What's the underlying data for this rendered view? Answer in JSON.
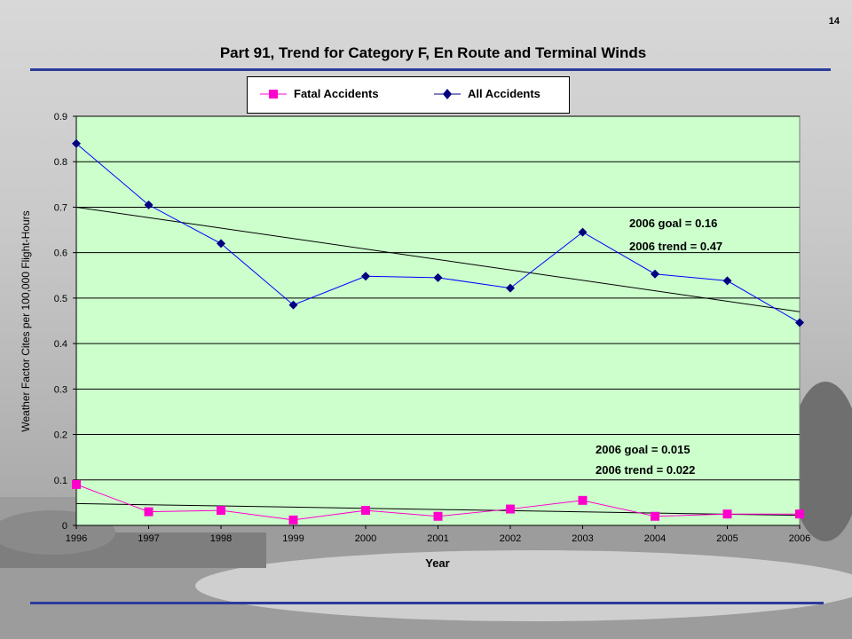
{
  "page_number": "14",
  "colors": {
    "plot_background": "#ccffcc",
    "fatal_series": "#ff00cc",
    "all_series": "#000080",
    "all_line": "#0000ff",
    "trend": "#000000",
    "rule": "#2a3b9a"
  },
  "chart_data": {
    "type": "line",
    "title": "Part 91, Trend for Category F,  En Route and Terminal Winds",
    "xlabel": "Year",
    "ylabel": "Weather Factor Cites per 100,000 Flight-Hours",
    "x": [
      "1996",
      "1997",
      "1998",
      "1999",
      "2000",
      "2001",
      "2002",
      "2003",
      "2004",
      "2005",
      "2006"
    ],
    "ylim": [
      0,
      0.9
    ],
    "yticks": [
      "0",
      "0.1",
      "0.2",
      "0.3",
      "0.4",
      "0.5",
      "0.6",
      "0.7",
      "0.8",
      "0.9"
    ],
    "grid": "horizontal",
    "legend_position": "top-center",
    "series": [
      {
        "name": "Fatal Accidents",
        "marker": "square",
        "values": [
          0.09,
          0.03,
          0.033,
          0.012,
          0.033,
          0.02,
          0.036,
          0.055,
          0.02,
          0.025,
          0.025
        ]
      },
      {
        "name": "All Accidents",
        "marker": "diamond",
        "values": [
          0.84,
          0.705,
          0.62,
          0.485,
          0.548,
          0.545,
          0.522,
          0.645,
          0.553,
          0.538,
          0.446
        ]
      }
    ],
    "trend_lines": [
      {
        "series": "All Accidents",
        "start": 0.7,
        "end": 0.47
      },
      {
        "series": "Fatal Accidents",
        "start": 0.048,
        "end": 0.022
      }
    ],
    "annotations": {
      "all": [
        "2006 goal = 0.16",
        "2006 trend = 0.47"
      ],
      "fatal": [
        "2006 goal = 0.015",
        "2006 trend = 0.022"
      ]
    }
  }
}
